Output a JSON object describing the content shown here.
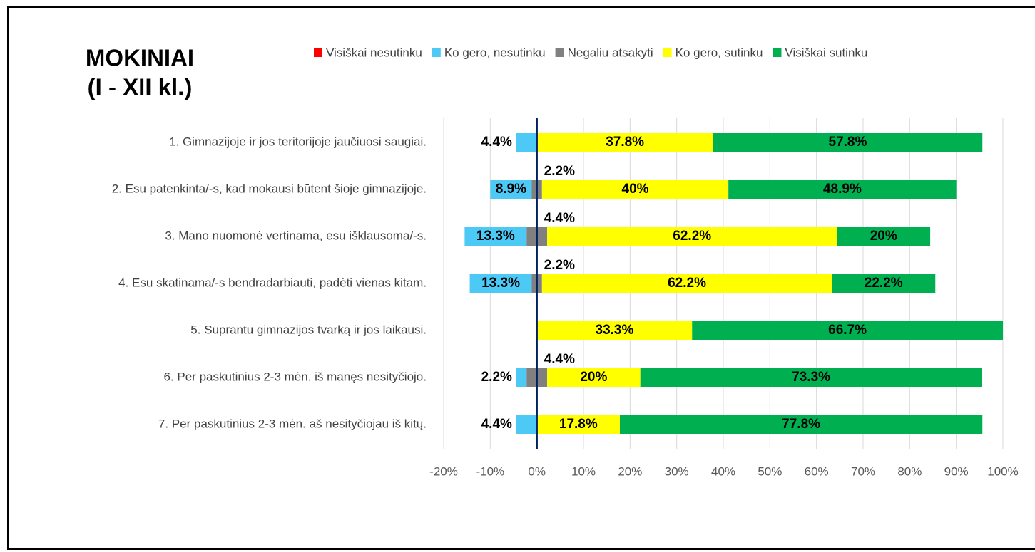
{
  "chart_data": {
    "type": "diverging_bar",
    "title_lines": [
      "MOKINIAI",
      "(I - XII kl.)"
    ],
    "categories": [
      "1. Gimnazijoje ir jos teritorijoje jaučiuosi saugiai.",
      "2. Esu patenkinta/-s, kad mokausi būtent šioje gimnazijoje.",
      "3. Mano nuomonė vertinama, esu išklausoma/-s.",
      "4. Esu skatinama/-s bendradarbiauti, padėti  vienas kitam.",
      "5. Suprantu gimnazijos tvarką ir jos laikausi.",
      "6. Per paskutinius 2-3 mėn. iš manęs nesityčiojo.",
      "7. Per paskutinius 2-3 mėn. aš nesityčiojau iš kitų."
    ],
    "series": [
      {
        "name": "Visiškai nesutinku",
        "color": "#ff0000",
        "values": [
          null,
          null,
          null,
          null,
          null,
          null,
          null
        ]
      },
      {
        "name": "Ko gero, nesutinku",
        "color": "#4dc9f6",
        "values": [
          4.4,
          8.9,
          13.3,
          13.3,
          null,
          2.2,
          4.4
        ],
        "value_labels": [
          "4.4%",
          "8.9%",
          "13.3%",
          "13.3%",
          null,
          "2.2%",
          "4.4%"
        ]
      },
      {
        "name": "Negaliu atsakyti",
        "color": "#808080",
        "values": [
          null,
          2.2,
          4.4,
          2.2,
          null,
          4.4,
          null
        ],
        "value_labels": [
          null,
          "2.2%",
          "4.4%",
          "2.2%",
          null,
          "4.4%",
          null
        ]
      },
      {
        "name": "Ko gero, sutinku",
        "color": "#ffff00",
        "values": [
          37.8,
          40,
          62.2,
          62.2,
          33.3,
          20,
          17.8
        ],
        "value_labels": [
          "37.8%",
          "40%",
          "62.2%",
          "62.2%",
          "33.3%",
          "20%",
          "17.8%"
        ]
      },
      {
        "name": "Visiškai sutinku",
        "color": "#00b050",
        "values": [
          57.8,
          48.9,
          20,
          22.2,
          66.7,
          73.3,
          77.8
        ],
        "value_labels": [
          "57.8%",
          "48.9%",
          "20%",
          "22.2%",
          "66.7%",
          "73.3%",
          "77.8%"
        ]
      }
    ],
    "xlim": [
      -20,
      100
    ],
    "xticks": [
      {
        "value": -20,
        "label": "-20%"
      },
      {
        "value": -10,
        "label": "-10%"
      },
      {
        "value": 0,
        "label": "0%"
      },
      {
        "value": 10,
        "label": "10%"
      },
      {
        "value": 20,
        "label": "20%"
      },
      {
        "value": 30,
        "label": "30%"
      },
      {
        "value": 40,
        "label": "40%"
      },
      {
        "value": 50,
        "label": "50%"
      },
      {
        "value": 60,
        "label": "60%"
      },
      {
        "value": 70,
        "label": "70%"
      },
      {
        "value": 80,
        "label": "80%"
      },
      {
        "value": 90,
        "label": "90%"
      },
      {
        "value": 100,
        "label": "100%"
      }
    ],
    "grid": true,
    "legend": "top"
  }
}
